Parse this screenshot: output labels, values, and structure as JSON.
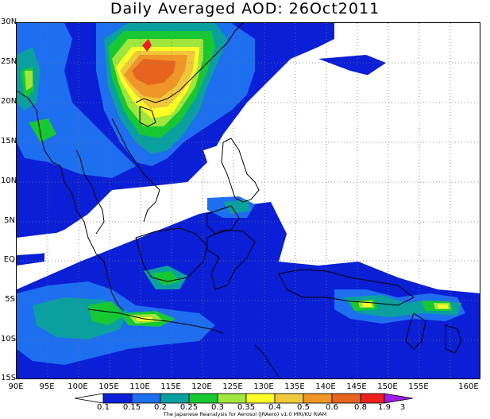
{
  "title": "Daily Averaged AOD: 26Oct2011",
  "lat_labels": [
    "30N",
    "25N",
    "20N",
    "15N",
    "10N",
    "5N",
    "EQ",
    "5S",
    "10S",
    "15S"
  ],
  "lon_labels": [
    "90E",
    "95E",
    "100E",
    "105E",
    "110E",
    "115E",
    "120E",
    "125E",
    "130E",
    "135E",
    "140E",
    "145E",
    "150E",
    "155E",
    "160E"
  ],
  "colorbar": {
    "labels": [
      "0.1",
      "0.15",
      "0.2",
      "0.25",
      "0.3",
      "0.35",
      "0.4",
      "0.5",
      "0.6",
      "0.8",
      "1.9",
      "3"
    ],
    "colors": [
      "#ffffff",
      "#0a1fd6",
      "#1e6ef0",
      "#0aa0a0",
      "#17c832",
      "#a0e63c",
      "#ffff28",
      "#f0c83c",
      "#f09628",
      "#e6641e",
      "#f01e1e",
      "#a01ee6"
    ]
  },
  "credit": "The Japanese Reanalysis for Aerosol (JRAero) v1.0 MRI/KU RIAM",
  "colors": {
    "white": "#ffffff",
    "dark_blue": "#0a1fd6",
    "mid_blue": "#1e6ef0",
    "teal": "#0aa0a0",
    "green": "#17c832",
    "yellow_green": "#a0e63c",
    "yellow": "#ffff28",
    "gold": "#f0c83c",
    "orange": "#f09628",
    "dark_orange": "#e6641e",
    "red": "#f01e1e"
  }
}
